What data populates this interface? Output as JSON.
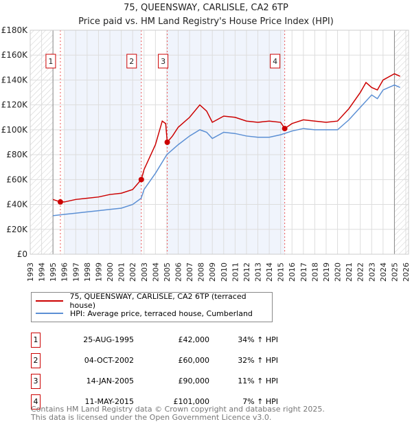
{
  "chart_data": {
    "type": "line",
    "title": "75, QUEENSWAY, CARLISLE, CA2 6TP",
    "subtitle": "Price paid vs. HM Land Registry's House Price Index (HPI)",
    "xlim": [
      1993,
      2026
    ],
    "ylim": [
      0,
      180000
    ],
    "x_ticks": [
      "1993",
      "1994",
      "1995",
      "1996",
      "1997",
      "1998",
      "1999",
      "2000",
      "2001",
      "2002",
      "2003",
      "2004",
      "2005",
      "2006",
      "2007",
      "2008",
      "2009",
      "2010",
      "2011",
      "2012",
      "2013",
      "2014",
      "2015",
      "2016",
      "2017",
      "2018",
      "2019",
      "2020",
      "2021",
      "2022",
      "2023",
      "2024",
      "2025",
      "2026"
    ],
    "y_ticks": [
      {
        "v": 0,
        "label": "£0"
      },
      {
        "v": 20000,
        "label": "£20K"
      },
      {
        "v": 40000,
        "label": "£40K"
      },
      {
        "v": 60000,
        "label": "£60K"
      },
      {
        "v": 80000,
        "label": "£80K"
      },
      {
        "v": 100000,
        "label": "£100K"
      },
      {
        "v": 120000,
        "label": "£120K"
      },
      {
        "v": 140000,
        "label": "£140K"
      },
      {
        "v": 160000,
        "label": "£160K"
      },
      {
        "v": 180000,
        "label": "£180K"
      }
    ],
    "series": [
      {
        "name": "75, QUEENSWAY, CARLISLE, CA2 6TP (terraced house)",
        "color": "#cc0000",
        "x": [
          1995,
          1995.65,
          1996,
          1997,
          1998,
          1999,
          2000,
          2001,
          2002,
          2002.76,
          2003,
          2004,
          2004.6,
          2004.9,
          2005.04,
          2005.5,
          2006,
          2007,
          2007.9,
          2008.5,
          2009,
          2010,
          2011,
          2012,
          2013,
          2014,
          2015,
          2015.36,
          2016,
          2017,
          2018,
          2019,
          2020,
          2021,
          2022,
          2022.5,
          2023,
          2023.5,
          2024,
          2025,
          2025.5
        ],
        "y": [
          44000,
          42000,
          42000,
          44000,
          45000,
          46000,
          48000,
          49000,
          52000,
          60000,
          68000,
          88000,
          107000,
          105000,
          90000,
          95000,
          102000,
          110000,
          120000,
          115000,
          106000,
          111000,
          110000,
          107000,
          106000,
          107000,
          106000,
          101000,
          105000,
          108000,
          107000,
          106000,
          107000,
          117000,
          130000,
          138000,
          134000,
          132000,
          140000,
          145000,
          143000
        ]
      },
      {
        "name": "HPI: Average price, terraced house, Cumberland",
        "color": "#5b8fd4",
        "x": [
          1995,
          1996,
          1997,
          1998,
          1999,
          2000,
          2001,
          2002,
          2002.75,
          2003,
          2004,
          2005,
          2006,
          2007,
          2007.9,
          2008.5,
          2009,
          2010,
          2011,
          2012,
          2013,
          2014,
          2015,
          2016,
          2017,
          2018,
          2019,
          2020,
          2021,
          2022,
          2023,
          2023.5,
          2024,
          2025,
          2025.5
        ],
        "y": [
          31000,
          32000,
          33000,
          34000,
          35000,
          36000,
          37000,
          40000,
          45000,
          52000,
          65000,
          80000,
          88000,
          95000,
          100000,
          98000,
          93000,
          98000,
          97000,
          95000,
          94000,
          94000,
          96000,
          99000,
          101000,
          100000,
          100000,
          100000,
          108000,
          118000,
          128000,
          125000,
          132000,
          136000,
          134000
        ]
      }
    ],
    "sales": [
      {
        "n": "1",
        "date": "25-AUG-1995",
        "x": 1995.65,
        "price": "£42,000",
        "value": 42000,
        "hpi": "34% ↑ HPI"
      },
      {
        "n": "2",
        "date": "04-OCT-2002",
        "x": 2002.76,
        "price": "£60,000",
        "value": 60000,
        "hpi": "32% ↑ HPI"
      },
      {
        "n": "3",
        "date": "14-JAN-2005",
        "x": 2005.04,
        "price": "£90,000",
        "value": 90000,
        "hpi": "11% ↑ HPI"
      },
      {
        "n": "4",
        "date": "11-MAY-2015",
        "x": 2015.36,
        "price": "£101,000",
        "value": 101000,
        "hpi": "7% ↑ HPI"
      }
    ]
  },
  "footer": {
    "line1": "Contains HM Land Registry data © Crown copyright and database right 2025.",
    "line2": "This data is licensed under the Open Government Licence v3.0."
  }
}
